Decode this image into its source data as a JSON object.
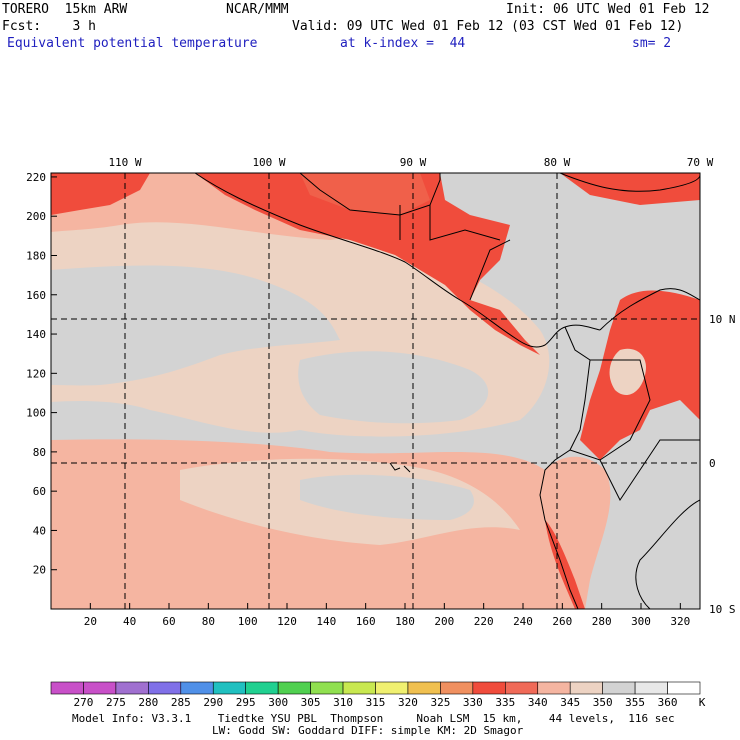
{
  "header": {
    "model": "TORERO  15km ARW",
    "org": "NCAR/MMM",
    "init": "Init: 06 UTC Wed 01 Feb 12",
    "fcst": "Fcst:    3 h",
    "valid": "Valid: 09 UTC Wed 01 Feb 12 (03 CST Wed 01 Feb 12)",
    "field": "Equivalent potential temperature",
    "kindex": "at k-index =  44",
    "smooth": "sm= 2"
  },
  "map": {
    "x_ticks": [
      "20",
      "40",
      "60",
      "80",
      "100",
      "120",
      "140",
      "160",
      "180",
      "200",
      "220",
      "240",
      "260",
      "280",
      "300",
      "320"
    ],
    "y_ticks": [
      "20",
      "40",
      "60",
      "80",
      "100",
      "120",
      "140",
      "160",
      "180",
      "200",
      "220"
    ],
    "lon_labels": [
      "110 W",
      "100 W",
      "90 W",
      "80 W",
      "70 W"
    ],
    "lat_labels": [
      "10 N",
      "0",
      "10 S"
    ],
    "colors": {
      "bg": "#d3d3d3",
      "cat345": "#edd3c3",
      "cat340": "#f5b5a1",
      "cat335": "#f09a84",
      "cat330": "#f04c3c",
      "cat325": "#f0604a",
      "cat320": "#f09060",
      "coast": "#000000",
      "grid": "#000000"
    }
  },
  "colorbar": {
    "labels": [
      "270",
      "275",
      "280",
      "285",
      "290",
      "295",
      "300",
      "305",
      "310",
      "315",
      "320",
      "325",
      "330",
      "335",
      "340",
      "345",
      "350",
      "355",
      "360"
    ],
    "unit": "K",
    "colors": [
      "#c850c8",
      "#a070d0",
      "#8070e8",
      "#5090e8",
      "#20c0c0",
      "#20d090",
      "#50d050",
      "#90e050",
      "#c8e850",
      "#f0f070",
      "#f0c050",
      "#f09060",
      "#f04c3c",
      "#f06a58",
      "#f5b5a1",
      "#edd3c3",
      "#d3d3d3",
      "#e8e8e8",
      "#ffffff"
    ]
  },
  "footer": {
    "line1": "Model Info: V3.3.1    Tiedtke YSU PBL  Thompson     Noah LSM  15 km,    44 levels,  116 sec",
    "line2": "LW: Godd SW: Goddard DIFF: simple KM: 2D Smagor"
  }
}
